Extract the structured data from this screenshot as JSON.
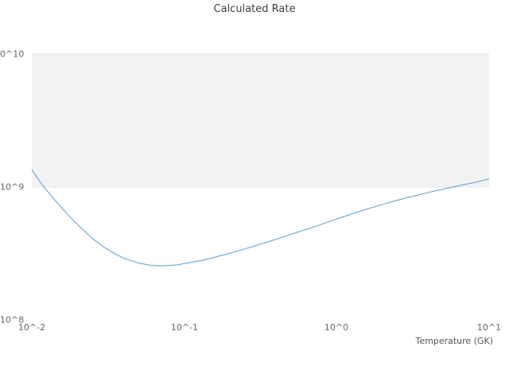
{
  "chart_data": {
    "type": "line",
    "title": "Calculated Rate",
    "xlabel": "Temperature (GK)",
    "ylabel": "",
    "x_scale": "log",
    "y_scale": "log",
    "xlim": [
      0.01,
      10
    ],
    "ylim": [
      100000000.0,
      10000000000.0
    ],
    "grid": "off",
    "legend": "none",
    "x_tick_labels": [
      "10^-2",
      "10^-1",
      "10^0",
      "10^1"
    ],
    "y_tick_labels": [
      "10^8",
      "10^9",
      "10^10"
    ],
    "shaded_band": {
      "y_from": 1000000000.0,
      "y_to": 10000000000.0,
      "color": "#f2f2f2",
      "edge_color": "#e7e7e7"
    },
    "line_color": "#5a9bd5",
    "series": [
      {
        "name": "Calculated Rate",
        "points": [
          [
            0.01,
            1350000000.0
          ],
          [
            0.011,
            1150000000.0
          ],
          [
            0.012,
            1000000000.0
          ],
          [
            0.014,
            810000000.0
          ],
          [
            0.016,
            680000000.0
          ],
          [
            0.018,
            590000000.0
          ],
          [
            0.02,
            520000000.0
          ],
          [
            0.025,
            410000000.0
          ],
          [
            0.03,
            350000000.0
          ],
          [
            0.035,
            315000000.0
          ],
          [
            0.04,
            292000000.0
          ],
          [
            0.05,
            268000000.0
          ],
          [
            0.06,
            258000000.0
          ],
          [
            0.07,
            255000000.0
          ],
          [
            0.08,
            257000000.0
          ],
          [
            0.09,
            260000000.0
          ],
          [
            0.1,
            265000000.0
          ],
          [
            0.13,
            280000000.0
          ],
          [
            0.16,
            297000000.0
          ],
          [
            0.2,
            318000000.0
          ],
          [
            0.25,
            342000000.0
          ],
          [
            0.3,
            365000000.0
          ],
          [
            0.4,
            405000000.0
          ],
          [
            0.5,
            440000000.0
          ],
          [
            0.65,
            485000000.0
          ],
          [
            0.8,
            525000000.0
          ],
          [
            1.0,
            575000000.0
          ],
          [
            1.3,
            635000000.0
          ],
          [
            1.6,
            685000000.0
          ],
          [
            2.0,
            740000000.0
          ],
          [
            2.5,
            795000000.0
          ],
          [
            3.0,
            840000000.0
          ],
          [
            4.0,
            910000000.0
          ],
          [
            5.0,
            965000000.0
          ],
          [
            6.5,
            1030000000.0
          ],
          [
            8.0,
            1080000000.0
          ],
          [
            10.0,
            1150000000.0
          ]
        ]
      }
    ]
  }
}
